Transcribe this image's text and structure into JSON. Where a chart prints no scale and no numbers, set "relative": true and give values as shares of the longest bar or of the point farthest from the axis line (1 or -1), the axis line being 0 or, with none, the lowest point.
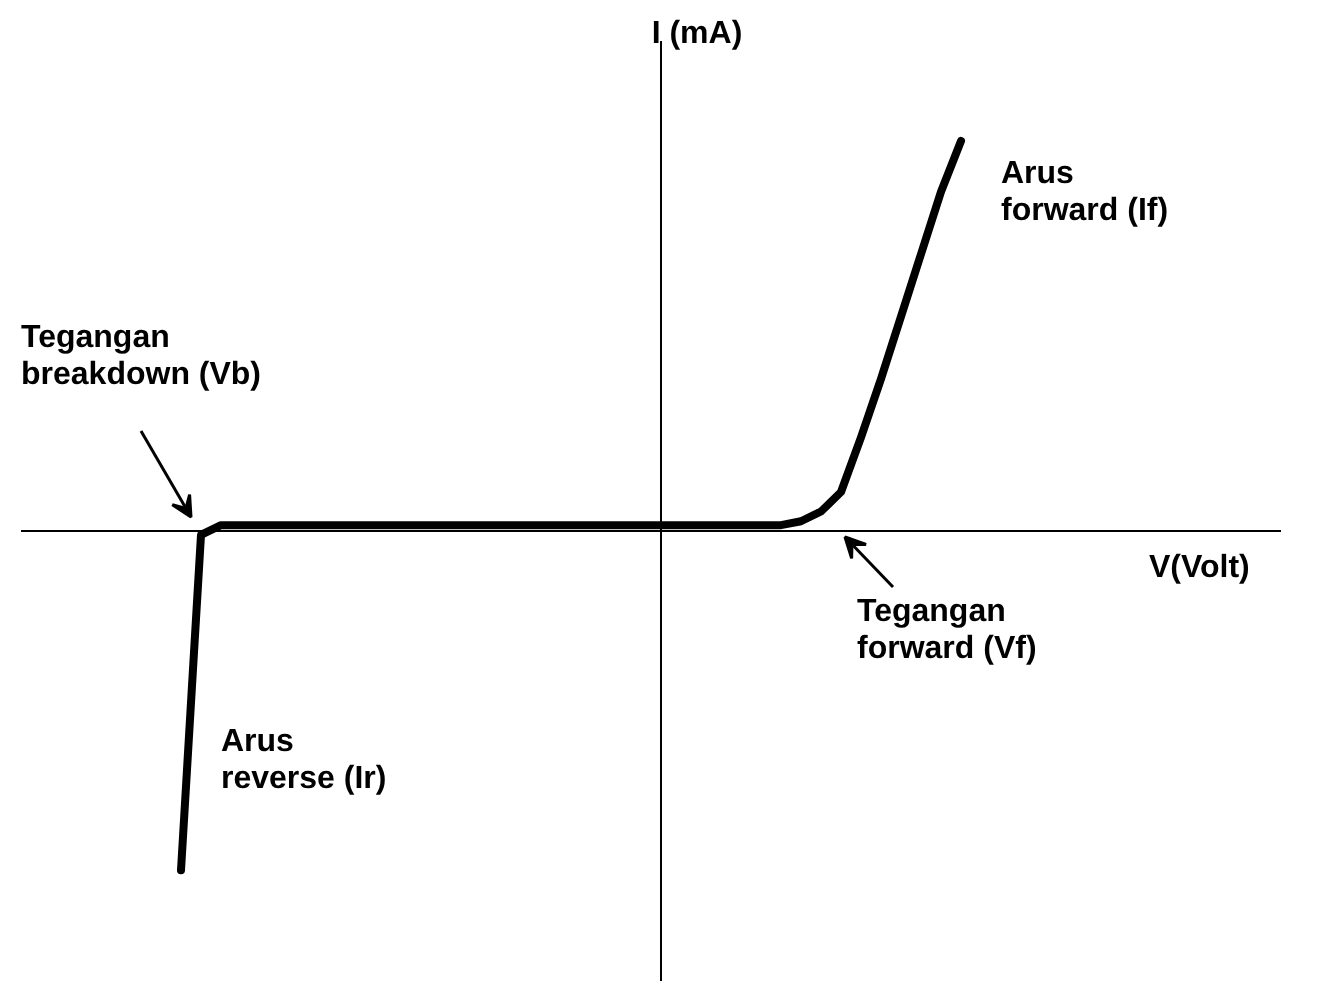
{
  "chart_data": {
    "type": "line",
    "relative": true,
    "color": "#000000",
    "categories": [
      null,
      null,
      null,
      null,
      null,
      null,
      null,
      null,
      null,
      null,
      null,
      null,
      null,
      null,
      null,
      null,
      null,
      null,
      null,
      null,
      null,
      null,
      null,
      null,
      null,
      null,
      null,
      null,
      null,
      null,
      null,
      null,
      null,
      null,
      null,
      null,
      null,
      null,
      null,
      null
    ],
    "values": [
      -0.87,
      -0.01,
      0.015,
      0.015,
      0.015,
      0.015,
      0.015,
      0.015,
      0.015,
      0.015,
      0.015,
      0.015,
      0.015,
      0.015,
      0.015,
      0.015,
      0.015,
      0.015,
      0.015,
      0.015,
      0.015,
      0.015,
      0.015,
      0.015,
      0.015,
      0.015,
      0.015,
      0.015,
      0.015,
      0.015,
      0.015,
      0.025,
      0.05,
      0.1,
      0.24,
      0.39,
      0.55,
      0.71,
      0.87,
      1.0
    ],
    "ylabel": "I (mA)",
    "annotations": [
      "Tegangan\nbreakdown  (Vb)",
      "Arus\nforward  (If)",
      "Tegangan\nforward      (Vf)",
      "Arus\nreverse  (Ir)",
      "V(Volt)"
    ]
  }
}
